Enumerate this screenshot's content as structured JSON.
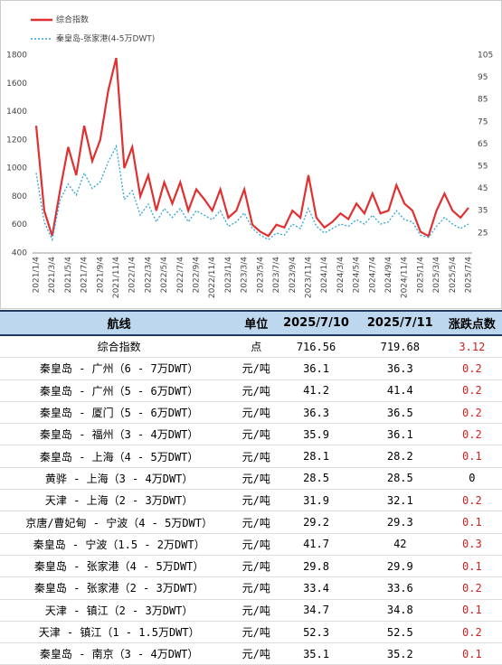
{
  "chart_data": {
    "type": "line",
    "categories": [
      "2021/1/4",
      null,
      "2021/3/4",
      null,
      "2021/5/4",
      null,
      "2021/7/4",
      null,
      "2021/9/4",
      null,
      "2021/11/4",
      null,
      "2022/1/4",
      null,
      "2022/3/4",
      null,
      "2022/5/4",
      null,
      "2022/7/4",
      null,
      "2022/9/4",
      null,
      "2022/11/4",
      null,
      "2023/1/4",
      null,
      "2023/3/4",
      null,
      "2023/5/4",
      null,
      "2023/7/4",
      null,
      "2023/9/4",
      null,
      "2023/11/4",
      null,
      "2024/1/4",
      null,
      "2024/3/4",
      null,
      "2024/5/4",
      null,
      "2024/7/4",
      null,
      "2024/9/4",
      null,
      "2024/11/4",
      null,
      "2025/1/4",
      null,
      "2025/3/4",
      null,
      "2025/5/4",
      null,
      "2025/7/4"
    ],
    "series": [
      {
        "name": "综合指数",
        "color": "#e03030",
        "values": [
          1300,
          700,
          520,
          850,
          1150,
          950,
          1300,
          1050,
          1200,
          1550,
          1780,
          1000,
          1150,
          800,
          950,
          700,
          900,
          750,
          900,
          700,
          850,
          780,
          700,
          850,
          650,
          700,
          850,
          600,
          550,
          520,
          600,
          580,
          700,
          650,
          950,
          650,
          580,
          620,
          680,
          640,
          750,
          680,
          820,
          680,
          700,
          880,
          750,
          700,
          550,
          520,
          700,
          820,
          700,
          650,
          720
        ]
      },
      {
        "name": "秦皇岛-张家港(4-5万DWT)",
        "color": "#2fa6d8",
        "axis": "y2",
        "values": [
          52,
          30,
          22,
          40,
          47,
          42,
          52,
          45,
          48,
          57,
          64,
          40,
          44,
          33,
          38,
          30,
          36,
          32,
          36,
          30,
          35,
          33,
          31,
          35,
          28,
          30,
          34,
          27,
          24,
          22,
          25,
          24,
          29,
          27,
          36,
          28,
          25,
          27,
          29,
          28,
          31,
          29,
          33,
          29,
          30,
          35,
          31,
          30,
          24,
          23,
          28,
          32,
          29,
          27,
          29
        ]
      }
    ],
    "ylim": [
      400,
      1800
    ],
    "yticks": [
      400,
      600,
      800,
      1000,
      1200,
      1400,
      1600,
      1800
    ],
    "y2lim": [
      16,
      105
    ],
    "y2ticks": [
      25,
      35,
      45,
      55,
      65,
      75,
      85,
      95,
      105
    ]
  },
  "table": {
    "header": [
      "航线",
      "单位",
      "2025/7/10",
      "2025/7/11",
      "涨跌点数"
    ],
    "rows": [
      [
        "综合指数",
        "点",
        "716.56",
        "719.68",
        "3.12"
      ],
      [
        "秦皇岛 - 广州（6 - 7万DWT）",
        "元/吨",
        "36.1",
        "36.3",
        "0.2"
      ],
      [
        "秦皇岛 - 广州（5 - 6万DWT）",
        "元/吨",
        "41.2",
        "41.4",
        "0.2"
      ],
      [
        "秦皇岛 - 厦门（5 - 6万DWT）",
        "元/吨",
        "36.3",
        "36.5",
        "0.2"
      ],
      [
        "秦皇岛 - 福州（3 - 4万DWT）",
        "元/吨",
        "35.9",
        "36.1",
        "0.2"
      ],
      [
        "秦皇岛 - 上海（4 - 5万DWT）",
        "元/吨",
        "28.1",
        "28.2",
        "0.1"
      ],
      [
        "黄骅 - 上海（3 - 4万DWT）",
        "元/吨",
        "28.5",
        "28.5",
        "0"
      ],
      [
        "天津 - 上海（2 - 3万DWT）",
        "元/吨",
        "31.9",
        "32.1",
        "0.2"
      ],
      [
        "京唐/曹妃甸 - 宁波（4 - 5万DWT）",
        "元/吨",
        "29.2",
        "29.3",
        "0.1"
      ],
      [
        "秦皇岛 - 宁波（1.5 - 2万DWT）",
        "元/吨",
        "41.7",
        "42",
        "0.3"
      ],
      [
        "秦皇岛 - 张家港（4 - 5万DWT）",
        "元/吨",
        "29.8",
        "29.9",
        "0.1"
      ],
      [
        "秦皇岛 - 张家港（2 - 3万DWT）",
        "元/吨",
        "33.4",
        "33.6",
        "0.2"
      ],
      [
        "天津 - 镇江（2 - 3万DWT）",
        "元/吨",
        "34.7",
        "34.8",
        "0.1"
      ],
      [
        "天津 - 镇江（1 - 1.5万DWT）",
        "元/吨",
        "52.3",
        "52.5",
        "0.2"
      ],
      [
        "秦皇岛 - 南京（3 - 4万DWT）",
        "元/吨",
        "35.1",
        "35.2",
        "0.1"
      ]
    ]
  }
}
